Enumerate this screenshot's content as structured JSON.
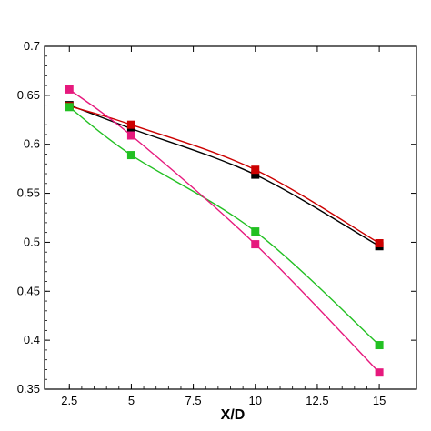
{
  "chart_data": {
    "type": "line",
    "title": "",
    "xlabel": "X/D",
    "ylabel": "",
    "xlim": [
      1.5,
      16.5
    ],
    "ylim": [
      0.35,
      0.7
    ],
    "grid": false,
    "legend": "none",
    "x_ticks": [
      2.5,
      5,
      7.5,
      10,
      12.5,
      15
    ],
    "x_tick_labels": [
      "2.5",
      "5",
      "7.5",
      "10",
      "12.5",
      "15"
    ],
    "y_ticks": [
      0.35,
      0.4,
      0.45,
      0.5,
      0.55,
      0.6,
      0.65,
      0.7
    ],
    "y_tick_labels": [
      "0.35",
      "0.4",
      "0.45",
      "0.5",
      "0.55",
      "0.6",
      "0.65",
      "0.7"
    ],
    "series": [
      {
        "color": "#000000",
        "x": [
          2.5,
          5,
          10,
          15
        ],
        "y": [
          0.64,
          0.616,
          0.569,
          0.496
        ]
      },
      {
        "color": "#cc0000",
        "x": [
          2.5,
          5,
          10,
          15
        ],
        "y": [
          0.639,
          0.62,
          0.574,
          0.499
        ]
      },
      {
        "color": "#22c022",
        "x": [
          2.5,
          5,
          10,
          15
        ],
        "y": [
          0.638,
          0.589,
          0.511,
          0.395
        ]
      },
      {
        "color": "#e6197d",
        "x": [
          2.5,
          5,
          10,
          15
        ],
        "y": [
          0.656,
          0.609,
          0.498,
          0.367
        ]
      }
    ]
  }
}
